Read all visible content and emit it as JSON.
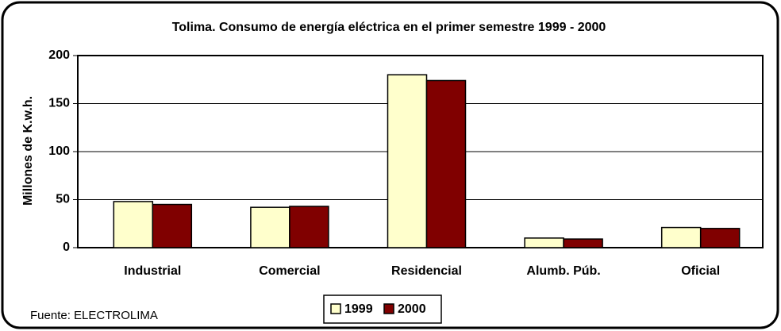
{
  "chart_data": {
    "type": "bar",
    "title": "Tolima. Consumo de energía eléctrica en el primer semestre 1999 - 2000",
    "y_label": "Millones de K.w.h.",
    "source": "Fuente: ELECTROLIMA",
    "categories": [
      "Industrial",
      "Comercial",
      "Residencial",
      "Alumb. Púb.",
      "Oficial"
    ],
    "series": [
      {
        "name": "1999",
        "color": "#ffffcc",
        "values": [
          48,
          42,
          180,
          10,
          21
        ]
      },
      {
        "name": "2000",
        "color": "#800000",
        "values": [
          45,
          43,
          174,
          9,
          20
        ]
      }
    ],
    "ylim": [
      0,
      200
    ],
    "yticks": [
      0,
      50,
      100,
      150,
      200
    ],
    "grid": true,
    "legend": "bottom"
  }
}
